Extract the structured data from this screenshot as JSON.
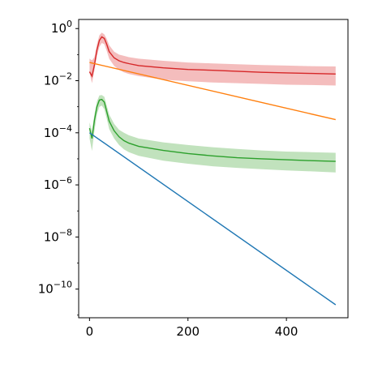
{
  "chart_data": {
    "type": "line",
    "title": "",
    "xlabel": "",
    "ylabel": "",
    "x_range": [
      -22,
      525
    ],
    "y_range_log10": [
      -11.1,
      0.35
    ],
    "y_scale": "log",
    "grid": false,
    "legend": "none",
    "x_ticks": [
      {
        "value": 0,
        "label": "0"
      },
      {
        "value": 200,
        "label": "200"
      },
      {
        "value": 400,
        "label": "400"
      }
    ],
    "y_ticks": [
      {
        "exp": 0,
        "base": "10",
        "sup": "0"
      },
      {
        "exp": -2,
        "base": "10",
        "sup": "−2"
      },
      {
        "exp": -4,
        "base": "10",
        "sup": "−4"
      },
      {
        "exp": -6,
        "base": "10",
        "sup": "−6"
      },
      {
        "exp": -8,
        "base": "10",
        "sup": "−8"
      },
      {
        "exp": -10,
        "base": "10",
        "sup": "−10"
      }
    ],
    "series": [
      {
        "color": "#d62728",
        "band_color": "#f2b1b2",
        "x": [
          0,
          5,
          10,
          15,
          20,
          25,
          30,
          35,
          40,
          50,
          60,
          70,
          80,
          100,
          150,
          200,
          250,
          300,
          350,
          400,
          450,
          500
        ],
        "y": [
          0.022,
          0.015,
          0.04,
          0.15,
          0.35,
          0.48,
          0.42,
          0.25,
          0.13,
          0.075,
          0.058,
          0.05,
          0.045,
          0.038,
          0.031,
          0.027,
          0.025,
          0.023,
          0.021,
          0.02,
          0.019,
          0.018
        ],
        "band_low": [
          0.02,
          0.008,
          0.025,
          0.09,
          0.2,
          0.28,
          0.25,
          0.14,
          0.07,
          0.037,
          0.026,
          0.021,
          0.018,
          0.015,
          0.011,
          0.0095,
          0.0085,
          0.008,
          0.0075,
          0.007,
          0.0068,
          0.0065
        ],
        "band_high": [
          0.07,
          0.06,
          0.08,
          0.25,
          0.55,
          0.7,
          0.6,
          0.4,
          0.23,
          0.13,
          0.1,
          0.09,
          0.08,
          0.07,
          0.058,
          0.05,
          0.046,
          0.043,
          0.04,
          0.038,
          0.036,
          0.035
        ]
      },
      {
        "color": "#ff7f0e",
        "x": [
          0,
          500
        ],
        "y": [
          0.05,
          0.00032
        ]
      },
      {
        "color": "#2ca02c",
        "band_color": "#b6ddb2",
        "x": [
          0,
          5,
          10,
          15,
          20,
          25,
          30,
          35,
          40,
          50,
          60,
          70,
          80,
          100,
          150,
          200,
          250,
          300,
          350,
          400,
          450,
          500
        ],
        "y": [
          0.00015,
          6e-05,
          0.0003,
          0.001,
          0.0018,
          0.0019,
          0.0015,
          0.00065,
          0.00028,
          0.00012,
          7e-05,
          5e-05,
          4e-05,
          3e-05,
          2.1e-05,
          1.6e-05,
          1.3e-05,
          1.1e-05,
          1e-05,
          9.2e-06,
          8.5e-06,
          8e-06
        ],
        "band_low": [
          6e-05,
          2e-05,
          0.00012,
          0.0005,
          0.001,
          0.0011,
          0.0008,
          0.00035,
          0.00014,
          6e-05,
          3.4e-05,
          2.3e-05,
          1.8e-05,
          1.3e-05,
          8.5e-06,
          6.5e-06,
          5.2e-06,
          4.5e-06,
          4e-06,
          3.6e-06,
          3.3e-06,
          3e-06
        ],
        "band_high": [
          0.00025,
          0.00012,
          0.0005,
          0.0016,
          0.0027,
          0.0028,
          0.0024,
          0.0011,
          0.0005,
          0.00022,
          0.00013,
          0.0001,
          8e-05,
          6e-05,
          4.3e-05,
          3.4e-05,
          2.8e-05,
          2.4e-05,
          2.1e-05,
          1.9e-05,
          1.8e-05,
          1.7e-05
        ]
      },
      {
        "color": "#1f77b4",
        "x": [
          0,
          500
        ],
        "y": [
          0.0001,
          2.5e-11
        ]
      }
    ]
  }
}
